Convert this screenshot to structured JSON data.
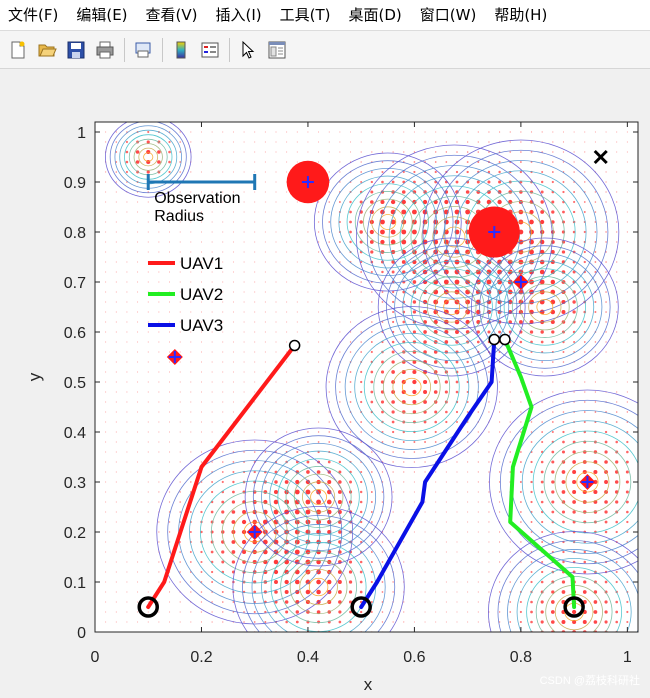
{
  "menu": {
    "items": [
      "文件(F)",
      "编辑(E)",
      "查看(V)",
      "插入(I)",
      "工具(T)",
      "桌面(D)",
      "窗口(W)",
      "帮助(H)"
    ]
  },
  "toolbar": {
    "icons": [
      "new-file-icon",
      "open-folder-icon",
      "save-icon",
      "print-icon",
      "print-preview-icon",
      "colorbar-icon",
      "legend-icon",
      "pointer-icon",
      "property-editor-icon"
    ]
  },
  "chart_data": {
    "type": "line",
    "xlabel": "x",
    "ylabel": "y",
    "xlim": [
      0,
      1.02
    ],
    "ylim": [
      0,
      1.02
    ],
    "xticks": [
      0,
      0.2,
      0.4,
      0.6,
      0.8,
      1
    ],
    "xtick_labels": [
      "0",
      "0.2",
      "0.4",
      "0.6",
      "0.8",
      "1"
    ],
    "yticks": [
      0,
      0.1,
      0.2,
      0.3,
      0.4,
      0.5,
      0.6,
      0.7,
      0.8,
      0.9,
      1
    ],
    "ytick_labels": [
      "0",
      "0.1",
      "0.2",
      "0.3",
      "0.4",
      "0.5",
      "0.6",
      "0.7",
      "0.8",
      "0.9",
      "1"
    ],
    "legend_placement": "top-left",
    "series": [
      {
        "name": "UAV1",
        "color": "#ff1a1a",
        "x": [
          0.1,
          0.13,
          0.2,
          0.375
        ],
        "y": [
          0.05,
          0.1,
          0.33,
          0.573
        ]
      },
      {
        "name": "UAV2",
        "color": "#22ee22",
        "x": [
          0.9,
          0.897,
          0.78,
          0.785,
          0.82,
          0.8,
          0.77
        ],
        "y": [
          0.05,
          0.11,
          0.22,
          0.33,
          0.45,
          0.51,
          0.585
        ]
      },
      {
        "name": "UAV3",
        "color": "#0a10e6",
        "x": [
          0.5,
          0.53,
          0.615,
          0.62,
          0.7,
          0.745,
          0.75
        ],
        "y": [
          0.05,
          0.1,
          0.26,
          0.3,
          0.43,
          0.5,
          0.585
        ]
      }
    ],
    "start_markers": [
      [
        0.1,
        0.05
      ],
      [
        0.5,
        0.05
      ],
      [
        0.9,
        0.05
      ]
    ],
    "end_markers": [
      [
        0.375,
        0.573
      ],
      [
        0.75,
        0.585
      ],
      [
        0.77,
        0.585
      ]
    ],
    "targets": [
      [
        0.4,
        0.9
      ],
      [
        0.75,
        0.8
      ],
      [
        0.8,
        0.7
      ],
      [
        0.15,
        0.55
      ],
      [
        0.3,
        0.2
      ],
      [
        0.925,
        0.3
      ]
    ],
    "large_targets": [
      [
        0.4,
        0.9,
        0.04
      ],
      [
        0.75,
        0.8,
        0.048
      ]
    ],
    "x_marker": [
      0.95,
      0.95
    ],
    "annotation": {
      "lines": [
        "Observation",
        "Radius"
      ],
      "bar_x": [
        0.1,
        0.3
      ],
      "bar_y": 0.9
    },
    "density_peaks": [
      [
        0.1,
        0.95,
        0.035
      ],
      [
        0.55,
        0.82,
        0.06
      ],
      [
        0.675,
        0.79,
        0.08
      ],
      [
        0.8,
        0.8,
        0.08
      ],
      [
        0.67,
        0.65,
        0.06
      ],
      [
        0.845,
        0.65,
        0.06
      ],
      [
        0.595,
        0.49,
        0.07
      ],
      [
        0.3,
        0.2,
        0.08
      ],
      [
        0.42,
        0.27,
        0.06
      ],
      [
        0.42,
        0.09,
        0.07
      ],
      [
        0.925,
        0.3,
        0.08
      ],
      [
        0.9,
        0.04,
        0.07
      ]
    ],
    "colors": {
      "contour_low": "#5a4fcf",
      "contour_high": "#f4a21f",
      "grid_dot": "#ff3030",
      "target": "#ff1a1a",
      "target_cross": "#2b2bff"
    }
  },
  "watermark": "CSDN @荔枝科研社"
}
